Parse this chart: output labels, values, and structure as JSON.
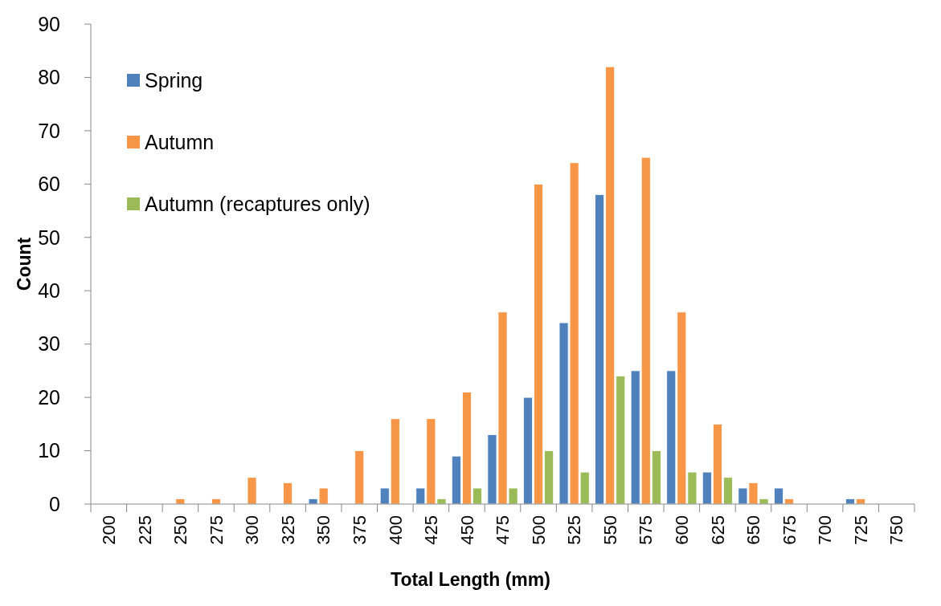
{
  "chart_data": {
    "type": "bar",
    "xlabel": "Total Length (mm)",
    "ylabel": "Count",
    "categories": [
      "200",
      "225",
      "250",
      "275",
      "300",
      "325",
      "350",
      "375",
      "400",
      "425",
      "450",
      "475",
      "500",
      "525",
      "550",
      "575",
      "600",
      "625",
      "650",
      "675",
      "700",
      "725",
      "750"
    ],
    "series": [
      {
        "name": "Spring",
        "color": "#4f81bd",
        "values": [
          0,
          0,
          0,
          0,
          0,
          0,
          1,
          0,
          3,
          3,
          9,
          13,
          20,
          34,
          58,
          25,
          25,
          6,
          3,
          3,
          0,
          1,
          0
        ]
      },
      {
        "name": "Autumn",
        "color": "#f79646",
        "values": [
          0,
          0,
          1,
          1,
          5,
          4,
          3,
          10,
          16,
          16,
          21,
          36,
          60,
          64,
          82,
          65,
          36,
          15,
          4,
          1,
          0,
          1,
          0
        ]
      },
      {
        "name": "Autumn (recaptures only)",
        "color": "#9bbb59",
        "values": [
          0,
          0,
          0,
          0,
          0,
          0,
          0,
          0,
          0,
          1,
          3,
          3,
          10,
          6,
          24,
          10,
          6,
          5,
          1,
          0,
          0,
          0,
          0
        ]
      }
    ],
    "ylim": [
      0,
      90
    ],
    "yticks": [
      0,
      10,
      20,
      30,
      40,
      50,
      60,
      70,
      80,
      90
    ],
    "grid": false,
    "legend": "top left"
  }
}
